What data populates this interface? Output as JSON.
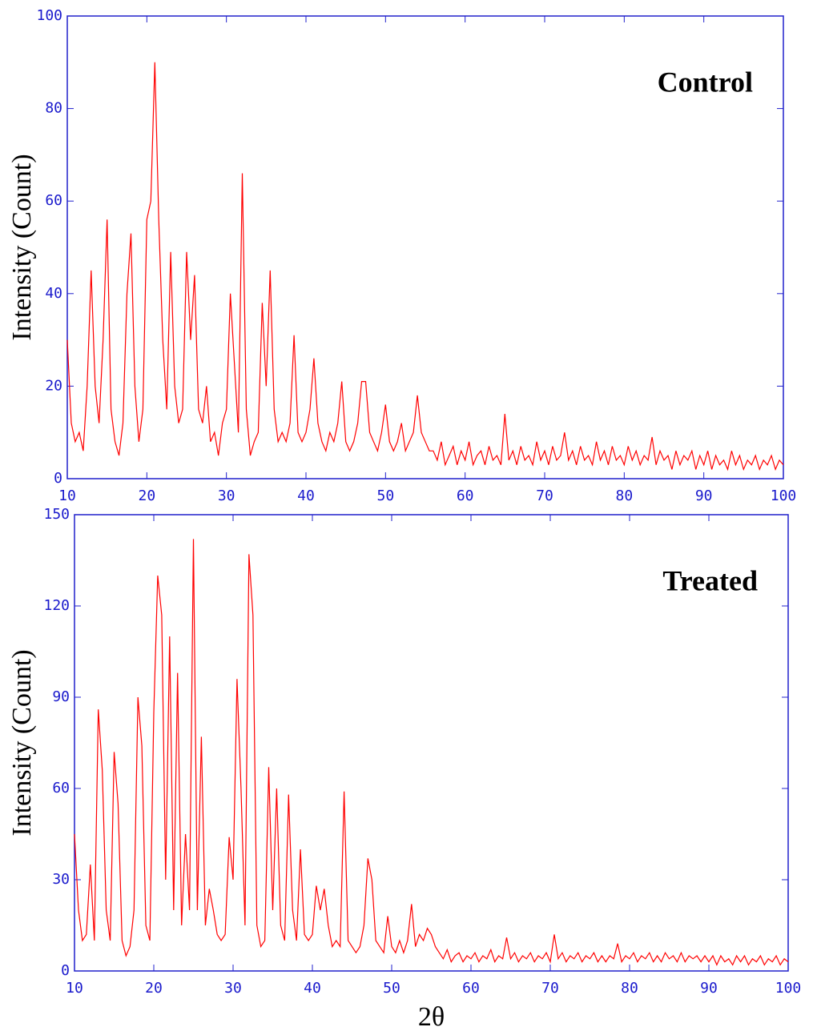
{
  "chart_data": [
    {
      "type": "line",
      "title": "Control",
      "ylabel": "Intensity (Count)",
      "color": "#ff0000",
      "xlim": [
        10,
        100
      ],
      "xticks": [
        10,
        20,
        30,
        40,
        50,
        60,
        70,
        80,
        90,
        100
      ],
      "ylim": [
        0,
        100
      ],
      "yticks": [
        0,
        20,
        40,
        60,
        80,
        100
      ],
      "x": [
        10,
        10.5,
        11,
        11.5,
        12,
        12.5,
        13,
        13.5,
        14,
        14.5,
        15,
        15.5,
        16,
        16.5,
        17,
        17.5,
        18,
        18.5,
        19,
        19.5,
        20,
        20.5,
        21,
        21.5,
        22,
        22.5,
        23,
        23.5,
        24,
        24.5,
        25,
        25.5,
        26,
        26.5,
        27,
        27.5,
        28,
        28.5,
        29,
        29.5,
        30,
        30.5,
        31,
        31.5,
        32,
        32.5,
        33,
        33.5,
        34,
        34.5,
        35,
        35.5,
        36,
        36.5,
        37,
        37.5,
        38,
        38.5,
        39,
        39.5,
        40,
        40.5,
        41,
        41.5,
        42,
        42.5,
        43,
        43.5,
        44,
        44.5,
        45,
        45.5,
        46,
        46.5,
        47,
        47.5,
        48,
        48.5,
        49,
        49.5,
        50,
        50.5,
        51,
        51.5,
        52,
        52.5,
        53,
        53.5,
        54,
        54.5,
        55,
        55.5,
        56,
        56.5,
        57,
        57.5,
        58,
        58.5,
        59,
        59.5,
        60,
        60.5,
        61,
        61.5,
        62,
        62.5,
        63,
        63.5,
        64,
        64.5,
        65,
        65.5,
        66,
        66.5,
        67,
        67.5,
        68,
        68.5,
        69,
        69.5,
        70,
        70.5,
        71,
        71.5,
        72,
        72.5,
        73,
        73.5,
        74,
        74.5,
        75,
        75.5,
        76,
        76.5,
        77,
        77.5,
        78,
        78.5,
        79,
        79.5,
        80,
        80.5,
        81,
        81.5,
        82,
        82.5,
        83,
        83.5,
        84,
        84.5,
        85,
        85.5,
        86,
        86.5,
        87,
        87.5,
        88,
        88.5,
        89,
        89.5,
        90,
        90.5,
        91,
        91.5,
        92,
        92.5,
        93,
        93.5,
        94,
        94.5,
        95,
        95.5,
        96,
        96.5,
        97,
        97.5,
        98,
        98.5,
        99,
        99.5,
        100
      ],
      "values": [
        30,
        12,
        8,
        10,
        6,
        20,
        45,
        20,
        12,
        30,
        56,
        15,
        8,
        5,
        12,
        40,
        53,
        20,
        8,
        15,
        56,
        60,
        90,
        56,
        30,
        15,
        49,
        20,
        12,
        15,
        49,
        30,
        44,
        15,
        12,
        20,
        8,
        10,
        5,
        12,
        15,
        40,
        25,
        10,
        66,
        15,
        5,
        8,
        10,
        38,
        20,
        45,
        15,
        8,
        10,
        8,
        12,
        31,
        10,
        8,
        10,
        15,
        26,
        12,
        8,
        6,
        10,
        8,
        12,
        21,
        8,
        6,
        8,
        12,
        21,
        21,
        10,
        8,
        6,
        10,
        16,
        8,
        6,
        8,
        12,
        6,
        8,
        10,
        18,
        10,
        8,
        6,
        6,
        4,
        8,
        3,
        5,
        7,
        3,
        6,
        4,
        8,
        3,
        5,
        6,
        3,
        7,
        4,
        5,
        3,
        14,
        4,
        6,
        3,
        7,
        4,
        5,
        3,
        8,
        4,
        6,
        3,
        7,
        4,
        5,
        10,
        4,
        6,
        3,
        7,
        4,
        5,
        3,
        8,
        4,
        6,
        3,
        7,
        4,
        5,
        3,
        7,
        4,
        6,
        3,
        5,
        4,
        9,
        3,
        6,
        4,
        5,
        2,
        6,
        3,
        5,
        4,
        6,
        2,
        5,
        3,
        6,
        2,
        5,
        3,
        4,
        2,
        6,
        3,
        5,
        2,
        4,
        3,
        5,
        2,
        4,
        3,
        5,
        2,
        4,
        3
      ]
    },
    {
      "type": "line",
      "title": "Treated",
      "ylabel": "Intensity (Count)",
      "xlabel": "2θ",
      "color": "#ff0000",
      "xlim": [
        10,
        100
      ],
      "xticks": [
        10,
        20,
        30,
        40,
        50,
        60,
        70,
        80,
        90,
        100
      ],
      "ylim": [
        0,
        150
      ],
      "yticks": [
        0,
        30,
        60,
        90,
        120,
        150
      ],
      "x": [
        10,
        10.5,
        11,
        11.5,
        12,
        12.5,
        13,
        13.5,
        14,
        14.5,
        15,
        15.5,
        16,
        16.5,
        17,
        17.5,
        18,
        18.5,
        19,
        19.5,
        20,
        20.5,
        21,
        21.5,
        22,
        22.5,
        23,
        23.5,
        24,
        24.5,
        25,
        25.5,
        26,
        26.5,
        27,
        27.5,
        28,
        28.5,
        29,
        29.5,
        30,
        30.5,
        31,
        31.5,
        32,
        32.5,
        33,
        33.5,
        34,
        34.5,
        35,
        35.5,
        36,
        36.5,
        37,
        37.5,
        38,
        38.5,
        39,
        39.5,
        40,
        40.5,
        41,
        41.5,
        42,
        42.5,
        43,
        43.5,
        44,
        44.5,
        45,
        45.5,
        46,
        46.5,
        47,
        47.5,
        48,
        48.5,
        49,
        49.5,
        50,
        50.5,
        51,
        51.5,
        52,
        52.5,
        53,
        53.5,
        54,
        54.5,
        55,
        55.5,
        56,
        56.5,
        57,
        57.5,
        58,
        58.5,
        59,
        59.5,
        60,
        60.5,
        61,
        61.5,
        62,
        62.5,
        63,
        63.5,
        64,
        64.5,
        65,
        65.5,
        66,
        66.5,
        67,
        67.5,
        68,
        68.5,
        69,
        69.5,
        70,
        70.5,
        71,
        71.5,
        72,
        72.5,
        73,
        73.5,
        74,
        74.5,
        75,
        75.5,
        76,
        76.5,
        77,
        77.5,
        78,
        78.5,
        79,
        79.5,
        80,
        80.5,
        81,
        81.5,
        82,
        82.5,
        83,
        83.5,
        84,
        84.5,
        85,
        85.5,
        86,
        86.5,
        87,
        87.5,
        88,
        88.5,
        89,
        89.5,
        90,
        90.5,
        91,
        91.5,
        92,
        92.5,
        93,
        93.5,
        94,
        94.5,
        95,
        95.5,
        96,
        96.5,
        97,
        97.5,
        98,
        98.5,
        99,
        99.5,
        100
      ],
      "values": [
        45,
        20,
        10,
        12,
        35,
        10,
        86,
        66,
        20,
        10,
        72,
        55,
        10,
        5,
        8,
        20,
        90,
        74,
        15,
        10,
        85,
        130,
        117,
        30,
        110,
        20,
        98,
        15,
        45,
        20,
        142,
        20,
        77,
        15,
        27,
        20,
        12,
        10,
        12,
        44,
        30,
        96,
        60,
        15,
        137,
        117,
        15,
        8,
        10,
        67,
        20,
        60,
        15,
        10,
        58,
        20,
        10,
        40,
        12,
        10,
        12,
        28,
        20,
        27,
        15,
        8,
        10,
        8,
        59,
        10,
        8,
        6,
        8,
        15,
        37,
        30,
        10,
        8,
        6,
        18,
        8,
        6,
        10,
        6,
        10,
        22,
        8,
        12,
        10,
        14,
        12,
        8,
        6,
        4,
        7,
        3,
        5,
        6,
        3,
        5,
        4,
        6,
        3,
        5,
        4,
        7,
        3,
        5,
        4,
        11,
        4,
        6,
        3,
        5,
        4,
        6,
        3,
        5,
        4,
        6,
        3,
        12,
        4,
        6,
        3,
        5,
        4,
        6,
        3,
        5,
        4,
        6,
        3,
        5,
        3,
        5,
        4,
        9,
        3,
        5,
        4,
        6,
        3,
        5,
        4,
        6,
        3,
        5,
        3,
        6,
        4,
        5,
        3,
        6,
        3,
        5,
        4,
        5,
        3,
        5,
        3,
        5,
        2,
        5,
        3,
        4,
        2,
        5,
        3,
        5,
        2,
        4,
        3,
        5,
        2,
        4,
        3,
        5,
        2,
        4,
        3
      ]
    }
  ]
}
